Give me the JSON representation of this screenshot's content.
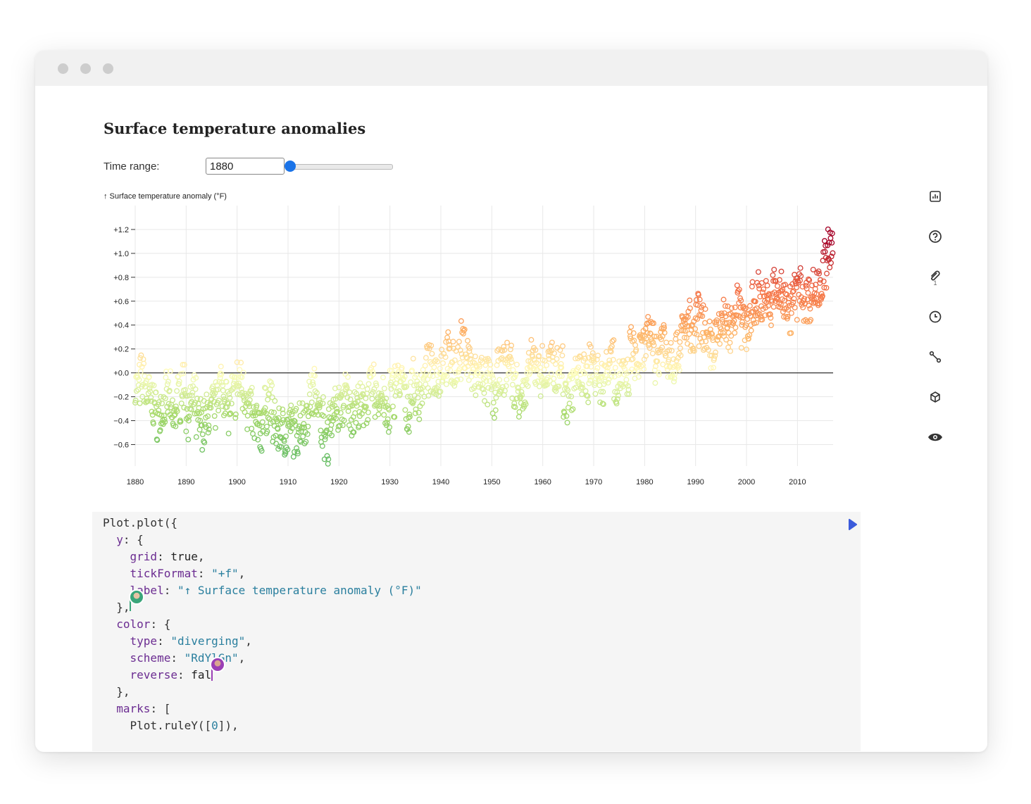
{
  "notebook": {
    "title": "Surface temperature anomalies",
    "time_range": {
      "label": "Time range:",
      "value": "1880",
      "slider_fraction": 0.0
    }
  },
  "sidebar": {
    "icons": [
      "bar-chart-icon",
      "help-icon",
      "paperclip-icon",
      "clock-icon",
      "branch-icon",
      "cube-icon",
      "eye-icon"
    ],
    "attachment_count": "1"
  },
  "chart_data": {
    "type": "scatter",
    "title": "",
    "ylabel": "↑ Surface temperature anomaly (°F)",
    "xlabel": "",
    "xlim": [
      1880,
      2017
    ],
    "ylim": [
      -0.78,
      1.4
    ],
    "x_ticks": [
      "1880",
      "1890",
      "1900",
      "1910",
      "1920",
      "1930",
      "1940",
      "1950",
      "1960",
      "1970",
      "1980",
      "1990",
      "2000",
      "2010"
    ],
    "y_ticks": [
      "+1.2",
      "+1.0",
      "+0.8",
      "+0.6",
      "+0.4",
      "+0.2",
      "+0.0",
      "−0.2",
      "−0.4",
      "−0.6"
    ],
    "y_tick_values": [
      1.2,
      1.0,
      0.8,
      0.6,
      0.4,
      0.2,
      0.0,
      -0.2,
      -0.4,
      -0.6
    ],
    "grid": true,
    "rule_y": 0,
    "color_scheme": "RdYlGn diverging (reversed)",
    "points": [
      [
        1880,
        -0.12
      ],
      [
        1881,
        -0.05
      ],
      [
        1882,
        -0.18
      ],
      [
        1883,
        -0.25
      ],
      [
        1884,
        -0.35
      ],
      [
        1885,
        -0.3
      ],
      [
        1886,
        -0.22
      ],
      [
        1887,
        -0.38
      ],
      [
        1888,
        -0.2
      ],
      [
        1889,
        -0.1
      ],
      [
        1890,
        -0.32
      ],
      [
        1891,
        -0.24
      ],
      [
        1892,
        -0.4
      ],
      [
        1893,
        -0.42
      ],
      [
        1894,
        -0.35
      ],
      [
        1895,
        -0.28
      ],
      [
        1896,
        -0.1
      ],
      [
        1897,
        -0.15
      ],
      [
        1898,
        -0.3
      ],
      [
        1899,
        -0.18
      ],
      [
        1900,
        -0.08
      ],
      [
        1901,
        -0.15
      ],
      [
        1902,
        -0.3
      ],
      [
        1903,
        -0.42
      ],
      [
        1904,
        -0.48
      ],
      [
        1905,
        -0.32
      ],
      [
        1906,
        -0.25
      ],
      [
        1907,
        -0.45
      ],
      [
        1908,
        -0.48
      ],
      [
        1909,
        -0.5
      ],
      [
        1910,
        -0.45
      ],
      [
        1911,
        -0.5
      ],
      [
        1912,
        -0.4
      ],
      [
        1913,
        -0.38
      ],
      [
        1914,
        -0.2
      ],
      [
        1915,
        -0.15
      ],
      [
        1916,
        -0.38
      ],
      [
        1917,
        -0.55
      ],
      [
        1918,
        -0.38
      ],
      [
        1919,
        -0.3
      ],
      [
        1920,
        -0.3
      ],
      [
        1921,
        -0.2
      ],
      [
        1922,
        -0.32
      ],
      [
        1923,
        -0.28
      ],
      [
        1924,
        -0.3
      ],
      [
        1925,
        -0.22
      ],
      [
        1926,
        -0.12
      ],
      [
        1927,
        -0.2
      ],
      [
        1928,
        -0.2
      ],
      [
        1929,
        -0.38
      ],
      [
        1930,
        -0.15
      ],
      [
        1931,
        -0.08
      ],
      [
        1932,
        -0.1
      ],
      [
        1933,
        -0.32
      ],
      [
        1934,
        -0.12
      ],
      [
        1935,
        -0.18
      ],
      [
        1936,
        -0.1
      ],
      [
        1937,
        0.02
      ],
      [
        1938,
        0.0
      ],
      [
        1939,
        0.0
      ],
      [
        1940,
        0.08
      ],
      [
        1941,
        0.12
      ],
      [
        1942,
        0.05
      ],
      [
        1943,
        0.08
      ],
      [
        1944,
        0.22
      ],
      [
        1945,
        0.12
      ],
      [
        1946,
        -0.05
      ],
      [
        1947,
        -0.02
      ],
      [
        1948,
        -0.05
      ],
      [
        1949,
        -0.08
      ],
      [
        1950,
        -0.18
      ],
      [
        1951,
        -0.02
      ],
      [
        1952,
        0.02
      ],
      [
        1953,
        0.1
      ],
      [
        1954,
        -0.12
      ],
      [
        1955,
        -0.15
      ],
      [
        1956,
        -0.22
      ],
      [
        1957,
        0.05
      ],
      [
        1958,
        0.08
      ],
      [
        1959,
        0.02
      ],
      [
        1960,
        -0.02
      ],
      [
        1961,
        0.06
      ],
      [
        1962,
        0.04
      ],
      [
        1963,
        0.05
      ],
      [
        1964,
        -0.2
      ],
      [
        1965,
        -0.12
      ],
      [
        1966,
        -0.05
      ],
      [
        1967,
        -0.02
      ],
      [
        1968,
        -0.05
      ],
      [
        1969,
        0.08
      ],
      [
        1970,
        0.03
      ],
      [
        1971,
        -0.08
      ],
      [
        1972,
        0.01
      ],
      [
        1973,
        0.16
      ],
      [
        1974,
        -0.1
      ],
      [
        1975,
        -0.02
      ],
      [
        1976,
        -0.1
      ],
      [
        1977,
        0.18
      ],
      [
        1978,
        0.08
      ],
      [
        1979,
        0.16
      ],
      [
        1980,
        0.26
      ],
      [
        1981,
        0.32
      ],
      [
        1982,
        0.12
      ],
      [
        1983,
        0.3
      ],
      [
        1984,
        0.15
      ],
      [
        1985,
        0.12
      ],
      [
        1986,
        0.18
      ],
      [
        1987,
        0.33
      ],
      [
        1988,
        0.4
      ],
      [
        1989,
        0.27
      ],
      [
        1990,
        0.45
      ],
      [
        1991,
        0.41
      ],
      [
        1992,
        0.22
      ],
      [
        1993,
        0.24
      ],
      [
        1994,
        0.31
      ],
      [
        1995,
        0.45
      ],
      [
        1996,
        0.35
      ],
      [
        1997,
        0.47
      ],
      [
        1998,
        0.63
      ],
      [
        1999,
        0.4
      ],
      [
        2000,
        0.42
      ],
      [
        2001,
        0.54
      ],
      [
        2002,
        0.63
      ],
      [
        2003,
        0.62
      ],
      [
        2004,
        0.54
      ],
      [
        2005,
        0.68
      ],
      [
        2006,
        0.64
      ],
      [
        2007,
        0.66
      ],
      [
        2008,
        0.54
      ],
      [
        2009,
        0.64
      ],
      [
        2010,
        0.72
      ],
      [
        2011,
        0.61
      ],
      [
        2012,
        0.64
      ],
      [
        2013,
        0.68
      ],
      [
        2014,
        0.75
      ],
      [
        2015,
        0.9
      ],
      [
        2016,
        1.01
      ]
    ]
  },
  "code": {
    "lines": [
      [
        [
          "Plot.plot({",
          "tk-plain"
        ]
      ],
      [
        [
          "  y",
          "tk-key"
        ],
        [
          ": {",
          "tk-plain"
        ]
      ],
      [
        [
          "    grid",
          "tk-key"
        ],
        [
          ": ",
          "tk-plain"
        ],
        [
          "true",
          "tk-lit"
        ],
        [
          ",",
          "tk-plain"
        ]
      ],
      [
        [
          "    tickFormat",
          "tk-key"
        ],
        [
          ": ",
          "tk-plain"
        ],
        [
          "\"+f\"",
          "tk-str"
        ],
        [
          ",",
          "tk-plain"
        ]
      ],
      [
        [
          "    label",
          "tk-key"
        ],
        [
          ": ",
          "tk-plain"
        ],
        [
          "\"↑ Surface temperature anomaly (°F)\"",
          "tk-str"
        ]
      ],
      [
        [
          "  },",
          "tk-plain"
        ]
      ],
      [
        [
          "  color",
          "tk-key"
        ],
        [
          ": {",
          "tk-plain"
        ]
      ],
      [
        [
          "    type",
          "tk-key"
        ],
        [
          ": ",
          "tk-plain"
        ],
        [
          "\"diverging\"",
          "tk-str"
        ],
        [
          ",",
          "tk-plain"
        ]
      ],
      [
        [
          "    scheme",
          "tk-key"
        ],
        [
          ": ",
          "tk-plain"
        ],
        [
          "\"RdYlGn\"",
          "tk-str"
        ],
        [
          ",",
          "tk-plain"
        ]
      ],
      [
        [
          "    reverse",
          "tk-key"
        ],
        [
          ": ",
          "tk-plain"
        ],
        [
          "fal",
          "tk-lit"
        ]
      ],
      [
        [
          "  },",
          "tk-plain"
        ]
      ],
      [
        [
          "  marks",
          "tk-key"
        ],
        [
          ": [",
          "tk-plain"
        ]
      ],
      [
        [
          "    Plot.ruleY([",
          "tk-plain"
        ],
        [
          "0",
          "tk-num"
        ],
        [
          "]),",
          "tk-plain"
        ]
      ]
    ]
  },
  "colors": {
    "accent": "#1a73e8",
    "run_button": "#3b5bdb",
    "collaborator_1": "#3aa57a",
    "collaborator_2": "#9b3fb5"
  }
}
